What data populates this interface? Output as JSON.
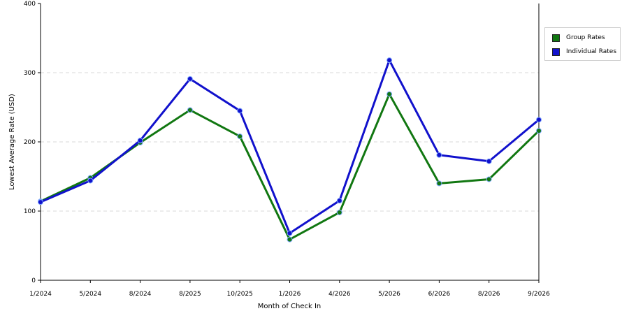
{
  "chart_data": {
    "type": "line",
    "xlabel": "Month of Check In",
    "ylabel": "Lowest Average Rate (USD)",
    "ylim": [
      0,
      400
    ],
    "yticks": [
      0,
      100,
      200,
      300,
      400
    ],
    "grid": "horizontal dashed",
    "legend_position": "right",
    "categories": [
      "1/2024",
      "5/2024",
      "8/2024",
      "8/2025",
      "10/2025",
      "1/2026",
      "4/2026",
      "5/2026",
      "6/2026",
      "8/2026",
      "9/2026"
    ],
    "series": [
      {
        "name": "Group Rates",
        "color": "#117711",
        "values": [
          114,
          148,
          199,
          246,
          208,
          59,
          98,
          269,
          140,
          146,
          216
        ]
      },
      {
        "name": "Individual Rates",
        "color": "#1111cc",
        "values": [
          113,
          144,
          202,
          291,
          245,
          68,
          115,
          318,
          181,
          172,
          232
        ]
      }
    ]
  }
}
